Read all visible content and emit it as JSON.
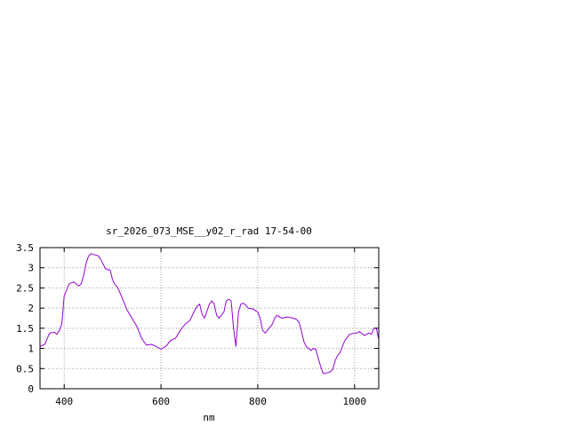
{
  "chart_data": {
    "type": "line",
    "title": "sr_2026_073_MSE__y02_r_rad 17-54-00",
    "xlabel": "nm",
    "ylabel": "",
    "xlim": [
      350,
      1050
    ],
    "ylim": [
      0,
      3.5
    ],
    "xticks": [
      400,
      600,
      800,
      1000
    ],
    "xtick_labels": [
      "400",
      "600",
      "800",
      "1000"
    ],
    "yticks": [
      0,
      0.5,
      1,
      1.5,
      2,
      2.5,
      3,
      3.5
    ],
    "ytick_labels": [
      "0",
      "0.5",
      "1",
      "1.5",
      "2",
      "2.5",
      "3",
      "3.5"
    ],
    "grid": true,
    "series": [
      {
        "color": "#9400d3",
        "x": [
          350,
          360,
          365,
          370,
          380,
          385,
          390,
          395,
          400,
          410,
          420,
          430,
          435,
          440,
          445,
          450,
          455,
          460,
          470,
          475,
          480,
          485,
          490,
          495,
          500,
          505,
          510,
          520,
          530,
          540,
          550,
          560,
          570,
          580,
          590,
          600,
          610,
          620,
          630,
          640,
          650,
          660,
          670,
          675,
          680,
          685,
          690,
          700,
          705,
          710,
          715,
          720,
          730,
          735,
          740,
          745,
          750,
          755,
          760,
          765,
          770,
          775,
          780,
          790,
          800,
          805,
          810,
          815,
          820,
          830,
          835,
          840,
          845,
          850,
          860,
          870,
          880,
          885,
          890,
          895,
          900,
          905,
          910,
          915,
          920,
          925,
          930,
          935,
          940,
          950,
          955,
          960,
          965,
          970,
          980,
          990,
          1000,
          1005,
          1010,
          1020,
          1030,
          1035,
          1040,
          1045,
          1050
        ],
        "y": [
          1.05,
          1.1,
          1.25,
          1.38,
          1.4,
          1.35,
          1.45,
          1.6,
          2.3,
          2.6,
          2.65,
          2.55,
          2.6,
          2.8,
          3.1,
          3.28,
          3.35,
          3.33,
          3.3,
          3.22,
          3.1,
          2.98,
          2.95,
          2.95,
          2.7,
          2.58,
          2.52,
          2.25,
          1.95,
          1.75,
          1.55,
          1.25,
          1.08,
          1.1,
          1.05,
          0.98,
          1.05,
          1.2,
          1.25,
          1.45,
          1.6,
          1.7,
          1.95,
          2.05,
          2.1,
          1.85,
          1.75,
          2.1,
          2.18,
          2.1,
          1.82,
          1.75,
          1.9,
          2.18,
          2.22,
          2.18,
          1.5,
          1.05,
          1.9,
          2.1,
          2.12,
          2.08,
          2.0,
          1.98,
          1.9,
          1.75,
          1.45,
          1.38,
          1.45,
          1.6,
          1.75,
          1.82,
          1.78,
          1.75,
          1.78,
          1.76,
          1.72,
          1.65,
          1.45,
          1.18,
          1.05,
          1.0,
          0.95,
          1.0,
          0.98,
          0.75,
          0.55,
          0.38,
          0.38,
          0.42,
          0.48,
          0.7,
          0.82,
          0.9,
          1.2,
          1.35,
          1.38,
          1.38,
          1.42,
          1.32,
          1.38,
          1.35,
          1.5,
          1.5,
          1.22
        ]
      }
    ]
  }
}
